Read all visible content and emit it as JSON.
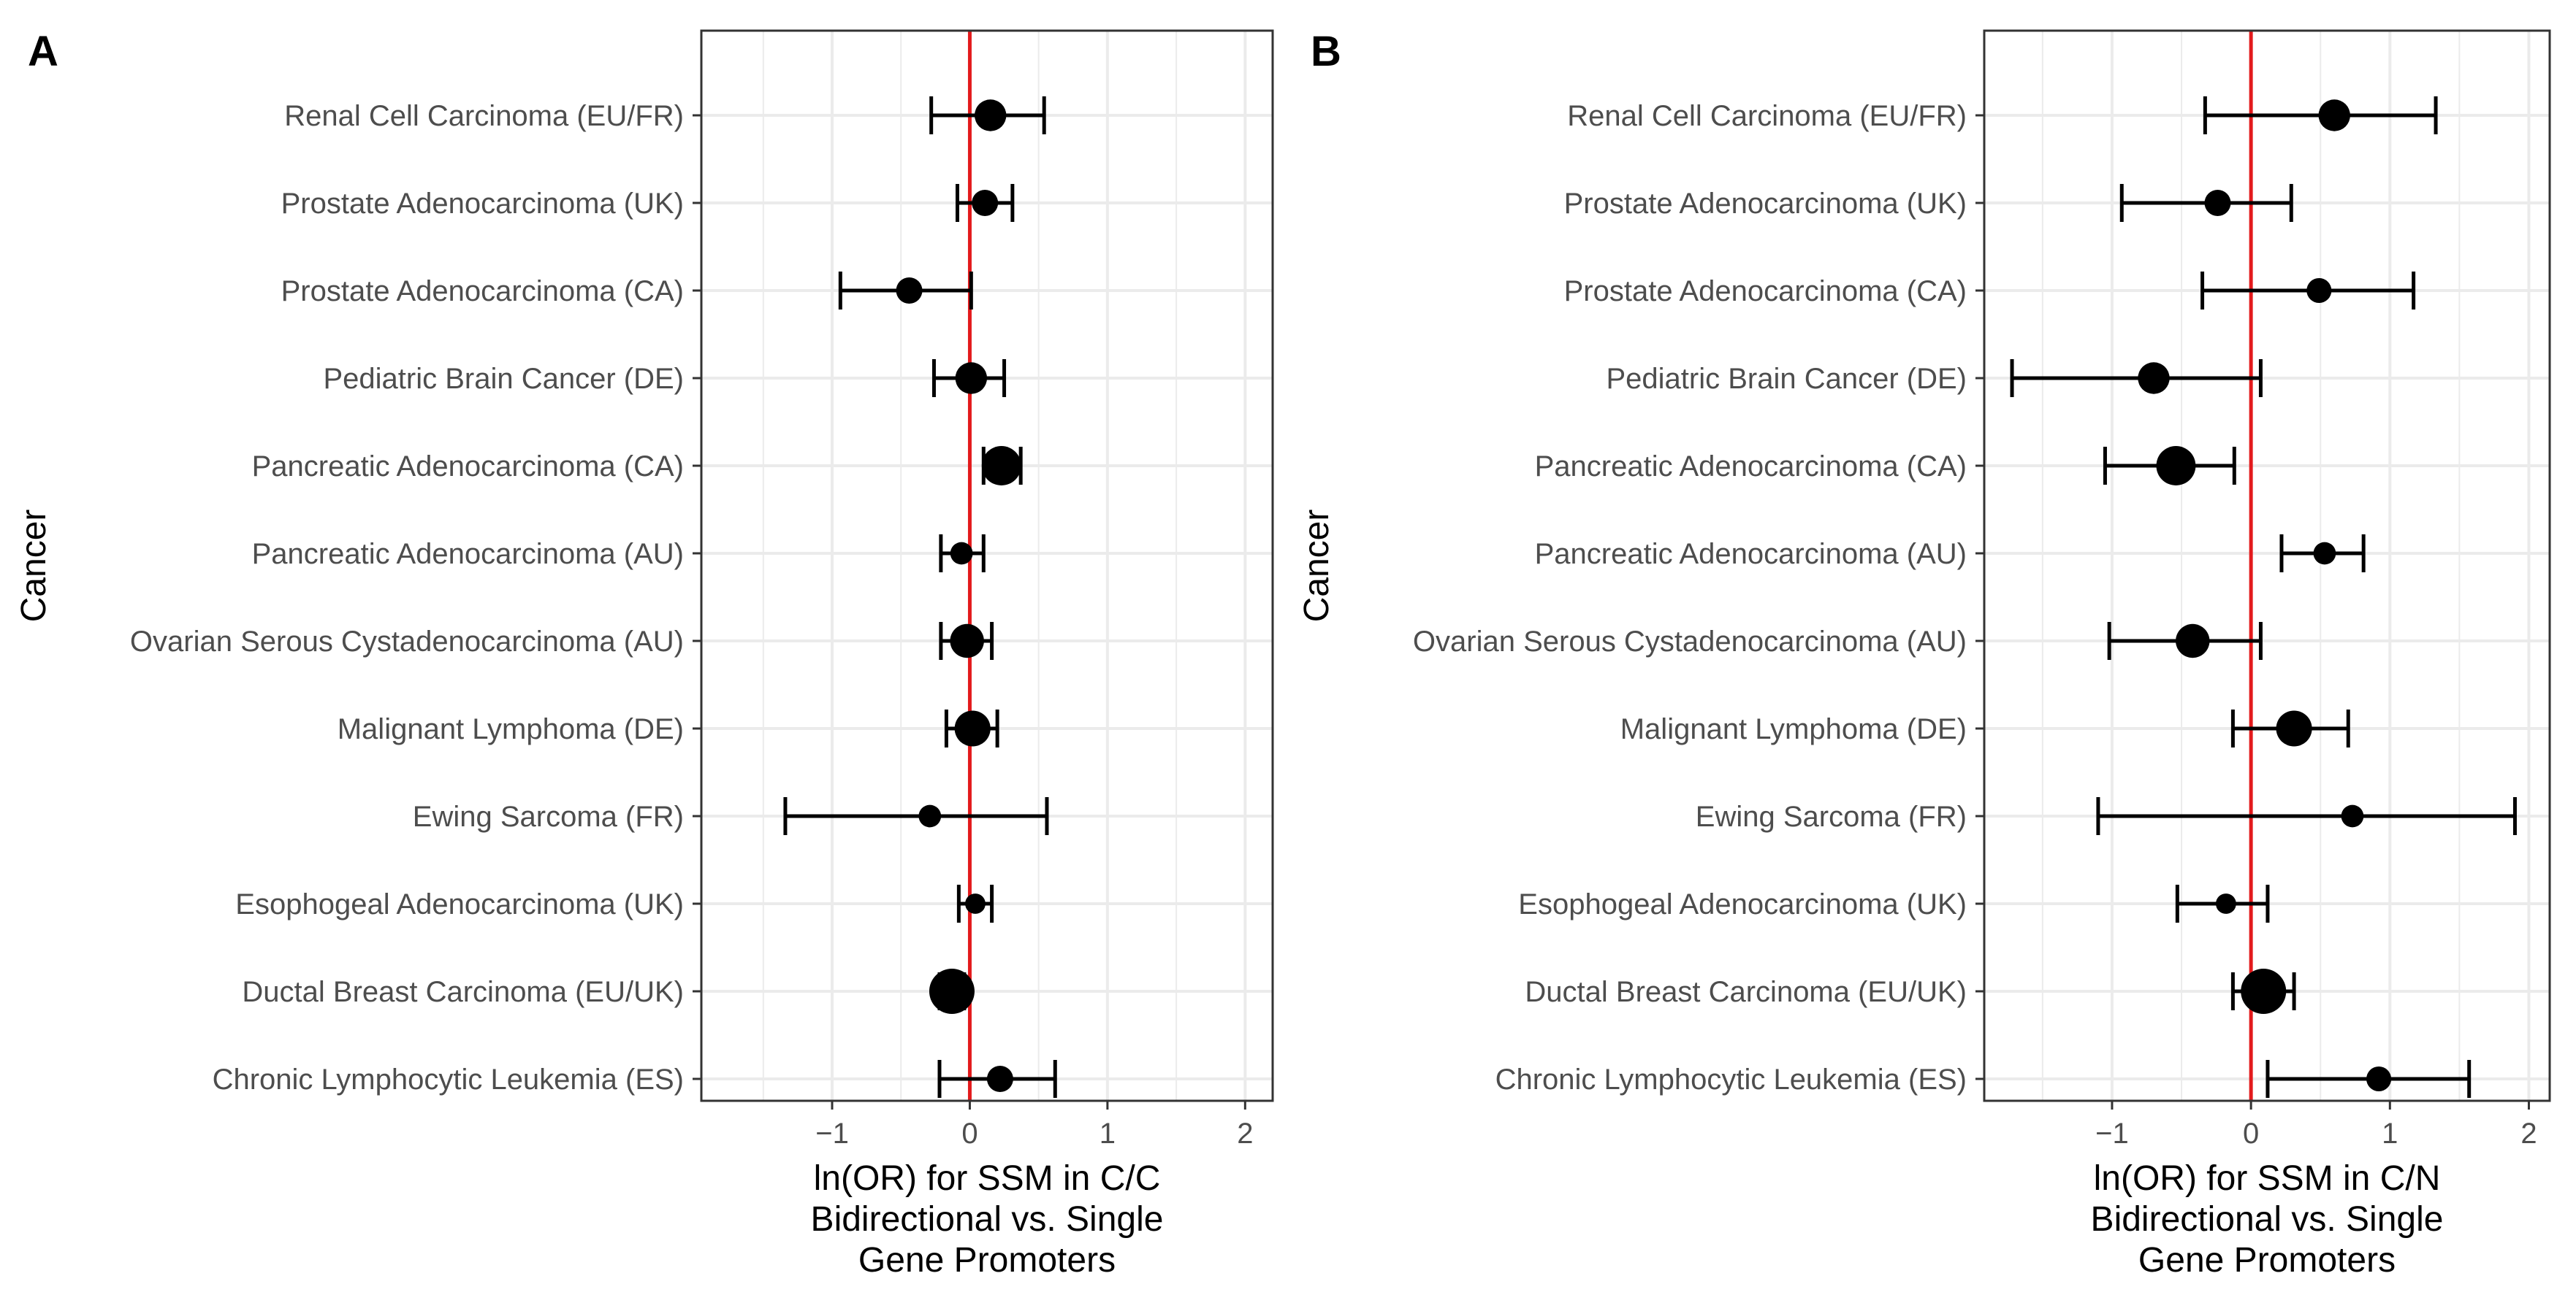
{
  "colors": {
    "grid": "#ebebeb",
    "panel_border": "#333333",
    "reference_line": "#e31a1c",
    "point": "#000000"
  },
  "chart_data": [
    {
      "type": "forest",
      "panel_label": "A",
      "ylabel": "Cancer",
      "xlabel_lines": [
        "ln(OR) for SSM in C/C",
        "Bidirectional vs. Single",
        "Gene Promoters"
      ],
      "xlim": [
        -1.95,
        2.2
      ],
      "xticks": [
        -1,
        0,
        1,
        2
      ],
      "xtick_labels": [
        "−1",
        "0",
        "1",
        "2"
      ],
      "reference_line": 0,
      "rows": [
        {
          "label": "Renal Cell Carcinoma (EU/FR)",
          "estimate": 0.15,
          "lower": -0.28,
          "upper": 0.54,
          "weight": 2
        },
        {
          "label": "Prostate Adenocarcinoma (UK)",
          "estimate": 0.11,
          "lower": -0.09,
          "upper": 0.31,
          "weight": 1
        },
        {
          "label": "Prostate Adenocarcinoma (CA)",
          "estimate": -0.44,
          "lower": -0.94,
          "upper": 0.01,
          "weight": 1
        },
        {
          "label": "Pediatric Brain Cancer (DE)",
          "estimate": 0.01,
          "lower": -0.26,
          "upper": 0.25,
          "weight": 2
        },
        {
          "label": "Pancreatic Adenocarcinoma (CA)",
          "estimate": 0.23,
          "lower": 0.1,
          "upper": 0.37,
          "weight": 4
        },
        {
          "label": "Pancreatic Adenocarcinoma (AU)",
          "estimate": -0.06,
          "lower": -0.21,
          "upper": 0.1,
          "weight": 0.5
        },
        {
          "label": "Ovarian Serous Cystadenocarcinoma (AU)",
          "estimate": -0.02,
          "lower": -0.21,
          "upper": 0.16,
          "weight": 2.5
        },
        {
          "label": "Malignant Lymphoma (DE)",
          "estimate": 0.02,
          "lower": -0.17,
          "upper": 0.2,
          "weight": 3
        },
        {
          "label": "Ewing Sarcoma (FR)",
          "estimate": -0.29,
          "lower": -1.34,
          "upper": 0.56,
          "weight": 0.5
        },
        {
          "label": "Esophogeal Adenocarcinoma (UK)",
          "estimate": 0.04,
          "lower": -0.08,
          "upper": 0.16,
          "weight": 0.3
        },
        {
          "label": "Ductal Breast Carcinoma (EU/UK)",
          "estimate": -0.13,
          "lower": -0.22,
          "upper": -0.04,
          "weight": 6
        },
        {
          "label": "Chronic Lymphocytic Leukemia (ES)",
          "estimate": 0.22,
          "lower": -0.22,
          "upper": 0.62,
          "weight": 1
        }
      ]
    },
    {
      "type": "forest",
      "panel_label": "B",
      "ylabel": "Cancer",
      "xlabel_lines": [
        "ln(OR) for SSM in C/N",
        "Bidirectional vs. Single",
        "Gene Promoters"
      ],
      "xlim": [
        -1.92,
        2.15
      ],
      "xticks": [
        -1,
        0,
        1,
        2
      ],
      "xtick_labels": [
        "−1",
        "0",
        "1",
        "2"
      ],
      "reference_line": 0,
      "rows": [
        {
          "label": "Renal Cell Carcinoma (EU/FR)",
          "estimate": 0.6,
          "lower": -0.33,
          "upper": 1.33,
          "weight": 2
        },
        {
          "label": "Prostate Adenocarcinoma (UK)",
          "estimate": -0.24,
          "lower": -0.93,
          "upper": 0.29,
          "weight": 1
        },
        {
          "label": "Prostate Adenocarcinoma (CA)",
          "estimate": 0.49,
          "lower": -0.35,
          "upper": 1.17,
          "weight": 0.8
        },
        {
          "label": "Pediatric Brain Cancer (DE)",
          "estimate": -0.7,
          "lower": -1.72,
          "upper": 0.07,
          "weight": 2
        },
        {
          "label": "Pancreatic Adenocarcinoma (CA)",
          "estimate": -0.54,
          "lower": -1.05,
          "upper": -0.12,
          "weight": 4
        },
        {
          "label": "Pancreatic Adenocarcinoma (AU)",
          "estimate": 0.53,
          "lower": 0.22,
          "upper": 0.81,
          "weight": 0.5
        },
        {
          "label": "Ovarian Serous Cystadenocarcinoma (AU)",
          "estimate": -0.42,
          "lower": -1.02,
          "upper": 0.07,
          "weight": 2.5
        },
        {
          "label": "Malignant Lymphoma (DE)",
          "estimate": 0.31,
          "lower": -0.13,
          "upper": 0.7,
          "weight": 3
        },
        {
          "label": "Ewing Sarcoma (FR)",
          "estimate": 0.73,
          "lower": -1.1,
          "upper": 1.9,
          "weight": 0.5
        },
        {
          "label": "Esophogeal Adenocarcinoma (UK)",
          "estimate": -0.18,
          "lower": -0.53,
          "upper": 0.12,
          "weight": 0.3
        },
        {
          "label": "Ductal Breast Carcinoma (EU/UK)",
          "estimate": 0.09,
          "lower": -0.13,
          "upper": 0.31,
          "weight": 6
        },
        {
          "label": "Chronic Lymphocytic Leukemia (ES)",
          "estimate": 0.92,
          "lower": 0.12,
          "upper": 1.57,
          "weight": 0.8
        }
      ]
    }
  ]
}
